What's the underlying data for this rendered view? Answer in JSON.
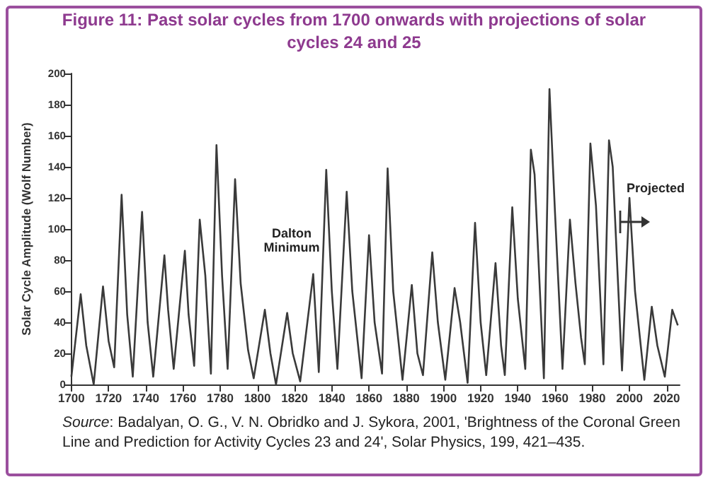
{
  "chart_data": {
    "type": "line",
    "title": "Figure 11: Past solar cycles from 1700 onwards with projections of solar cycles 24 and 25",
    "ylabel": "Solar Cycle Amplitude (Wolf Number)",
    "x": [
      1700,
      1705,
      1708,
      1712,
      1717,
      1720,
      1723,
      1727,
      1730,
      1733,
      1738,
      1741,
      1744,
      1750,
      1752,
      1755,
      1761,
      1763,
      1766,
      1769,
      1772,
      1775,
      1778,
      1781,
      1784,
      1788,
      1791,
      1795,
      1798,
      1804,
      1807,
      1810,
      1816,
      1819,
      1823,
      1830,
      1833,
      1837,
      1840,
      1843,
      1848,
      1851,
      1856,
      1860,
      1863,
      1867,
      1870,
      1873,
      1878,
      1883,
      1886,
      1889,
      1894,
      1897,
      1901,
      1906,
      1909,
      1913,
      1917,
      1920,
      1923,
      1928,
      1931,
      1933,
      1937,
      1940,
      1944,
      1947,
      1949,
      1954,
      1957,
      1960,
      1964,
      1968,
      1971,
      1974,
      1976,
      1979,
      1982,
      1986,
      1989,
      1991,
      1996,
      2000,
      2003,
      2008,
      2012,
      2015,
      2019,
      2023,
      2026
    ],
    "series": [
      {
        "color": "#3a3a3a",
        "values": [
          5,
          58,
          25,
          0,
          63,
          28,
          11,
          122,
          45,
          5,
          111,
          40,
          5,
          83,
          48,
          10,
          86,
          45,
          12,
          106,
          70,
          7,
          154,
          70,
          10,
          132,
          65,
          22,
          4,
          48,
          20,
          0,
          46,
          20,
          2,
          71,
          8,
          138,
          60,
          10,
          124,
          60,
          4,
          96,
          40,
          7,
          139,
          60,
          3,
          64,
          20,
          6,
          85,
          40,
          3,
          62,
          40,
          1,
          104,
          40,
          6,
          78,
          25,
          6,
          114,
          55,
          10,
          151,
          135,
          4,
          190,
          110,
          10,
          106,
          65,
          30,
          13,
          155,
          115,
          13,
          157,
          140,
          9,
          120,
          60,
          3,
          50,
          25,
          5,
          48,
          38
        ]
      }
    ],
    "xlim": [
      1700,
      2027
    ],
    "xticks": [
      1700,
      1720,
      1740,
      1760,
      1780,
      1800,
      1820,
      1840,
      1860,
      1880,
      1900,
      1920,
      1940,
      1960,
      1980,
      2000,
      2020
    ],
    "ylim": [
      0,
      200
    ],
    "yticks": [
      0,
      20,
      40,
      60,
      80,
      100,
      120,
      140,
      160,
      180,
      200
    ],
    "grid": false,
    "marker": "none",
    "line_style": "solid",
    "annotations": [
      "Dalton Minimum",
      "Projected",
      "Source: Badalyan, O. G., V. N. Obridko and J. Sykora, 2001, 'Brightness of the Coronal Green Line and Prediction for Activity Cycles 23 and 24', Solar Physics, 199, 421–435."
    ]
  }
}
